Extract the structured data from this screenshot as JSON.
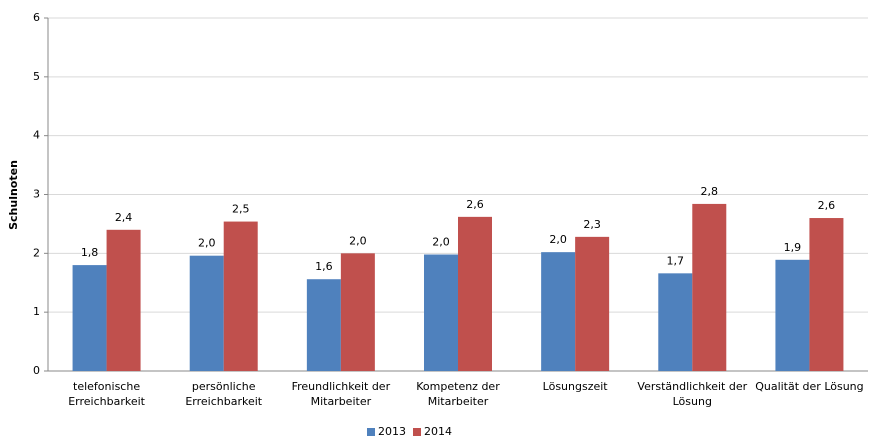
{
  "chart_data": {
    "type": "bar",
    "ylabel": "Schulnoten",
    "categories": [
      [
        "telefonische",
        "Erreichbarkeit"
      ],
      [
        "persönliche",
        "Erreichbarkeit"
      ],
      [
        "Freundlichkeit der",
        "Mitarbeiter"
      ],
      [
        "Kompetenz der",
        "Mitarbeiter"
      ],
      [
        "Lösungszeit"
      ],
      [
        "Verständlichkeit der",
        "Lösung"
      ],
      [
        "Qualität der Lösung"
      ]
    ],
    "series": [
      {
        "name": "2013",
        "color": "#4f81bd",
        "values": [
          1.8,
          1.96,
          1.56,
          1.98,
          2.02,
          1.66,
          1.89
        ],
        "value_labels": [
          "1,8",
          "2,0",
          "1,6",
          "2,0",
          "2,0",
          "1,7",
          "1,9"
        ]
      },
      {
        "name": "2014",
        "color": "#c0504d",
        "values": [
          2.4,
          2.54,
          2.0,
          2.62,
          2.28,
          2.84,
          2.6
        ],
        "value_labels": [
          "2,4",
          "2,5",
          "2,0",
          "2,6",
          "2,3",
          "2,8",
          "2,6"
        ]
      }
    ],
    "ylim": [
      0,
      6
    ],
    "yticks": [
      0,
      1,
      2,
      3,
      4,
      5,
      6
    ],
    "grid": true,
    "legend": "bottom"
  }
}
